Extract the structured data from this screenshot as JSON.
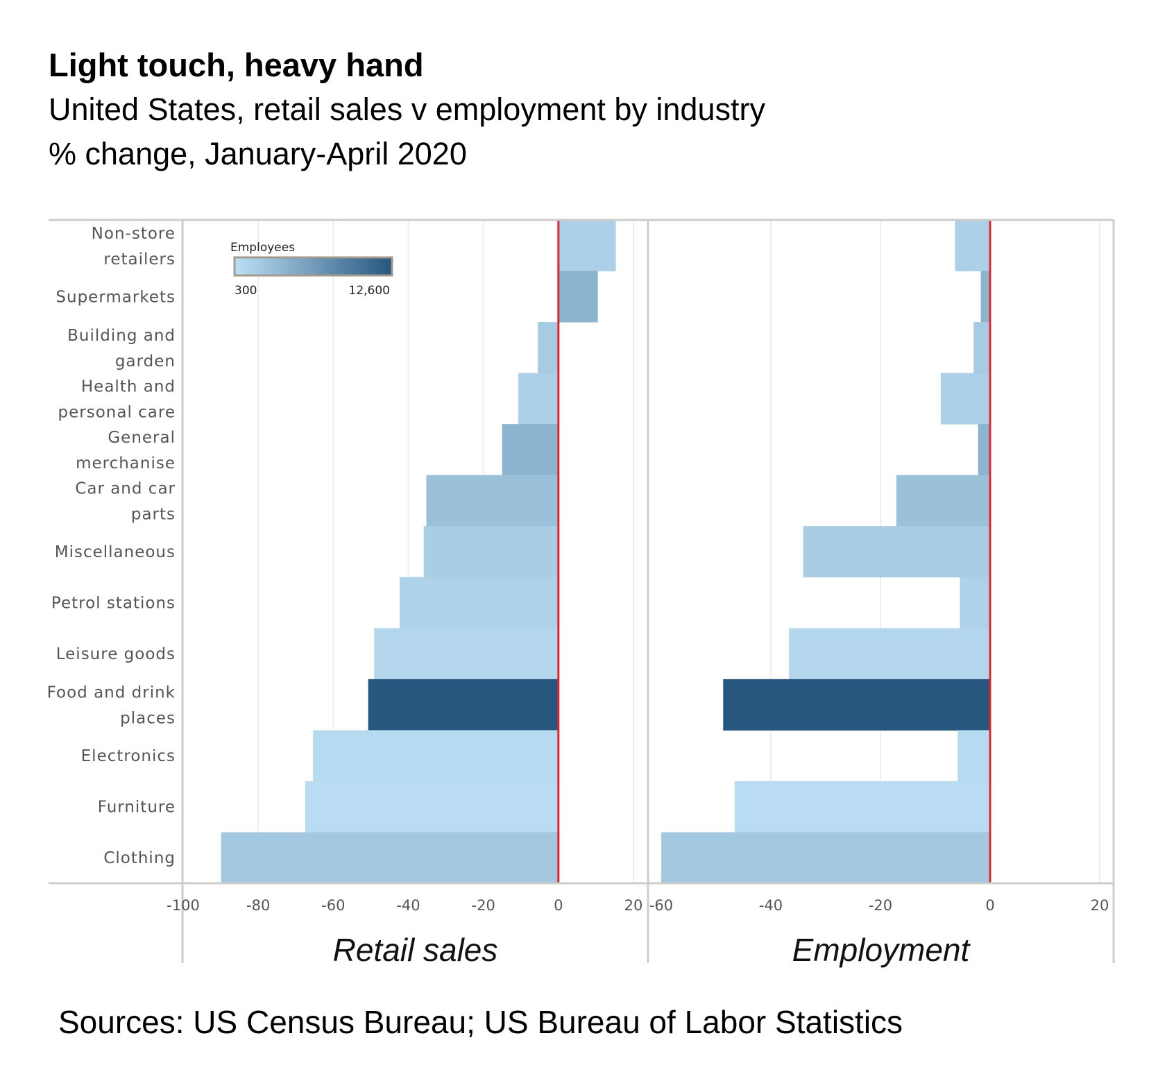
{
  "title": "Light touch, heavy hand",
  "subtitle": "United States, retail sales v employment by industry",
  "unit_line": "% change, January-April 2020",
  "source": "Sources: US Census Bureau; US Bureau of Labor Statistics",
  "colors": {
    "zero_line": "#e3242b",
    "gridline": "#eeeeee",
    "frame": "#cccccc",
    "scale_low": "#bde0f5",
    "scale_high": "#27567f"
  },
  "chart_data": {
    "type": "bar",
    "orientation": "horizontal",
    "categories": [
      [
        "Non-store",
        "retailers"
      ],
      [
        "Supermarkets"
      ],
      [
        "Building and",
        "garden"
      ],
      [
        "Health and",
        "personal care"
      ],
      [
        "General",
        "merchanise"
      ],
      [
        "Car and car",
        "parts"
      ],
      [
        "Miscellaneous"
      ],
      [
        "Petrol stations"
      ],
      [
        "Leisure goods"
      ],
      [
        "Food and drink",
        "places"
      ],
      [
        "Electronics"
      ],
      [
        "Furniture"
      ],
      [
        "Clothing"
      ]
    ],
    "color_legend": {
      "title": "Employees",
      "min_label": "300",
      "max_label": "12,600"
    },
    "panels": [
      {
        "label": "Retail sales",
        "xlim": [
          -100,
          20
        ],
        "ticks": [
          -100,
          -80,
          -60,
          -40,
          -20,
          0,
          20
        ],
        "values": [
          15.3,
          10.5,
          -5.5,
          -10.7,
          -15.0,
          -35.2,
          -35.9,
          -42.3,
          -49.1,
          -50.7,
          -65.4,
          -67.5,
          -89.9
        ]
      },
      {
        "label": "Employment",
        "xlim": [
          -60,
          20
        ],
        "ticks": [
          -60,
          -40,
          -20,
          0,
          20
        ],
        "values": [
          -6.4,
          -1.7,
          -3.0,
          -9.0,
          -2.2,
          -17.1,
          -34.1,
          -5.5,
          -36.7,
          -48.7,
          -5.9,
          -46.6,
          -60.0
        ]
      }
    ],
    "employees": [
      1000,
      3000,
      1300,
      1000,
      3000,
      2000,
      1200,
      900,
      600,
      12600,
      500,
      400,
      1500
    ],
    "zero_line": 0,
    "grid": true,
    "legend_position": "top-left"
  }
}
